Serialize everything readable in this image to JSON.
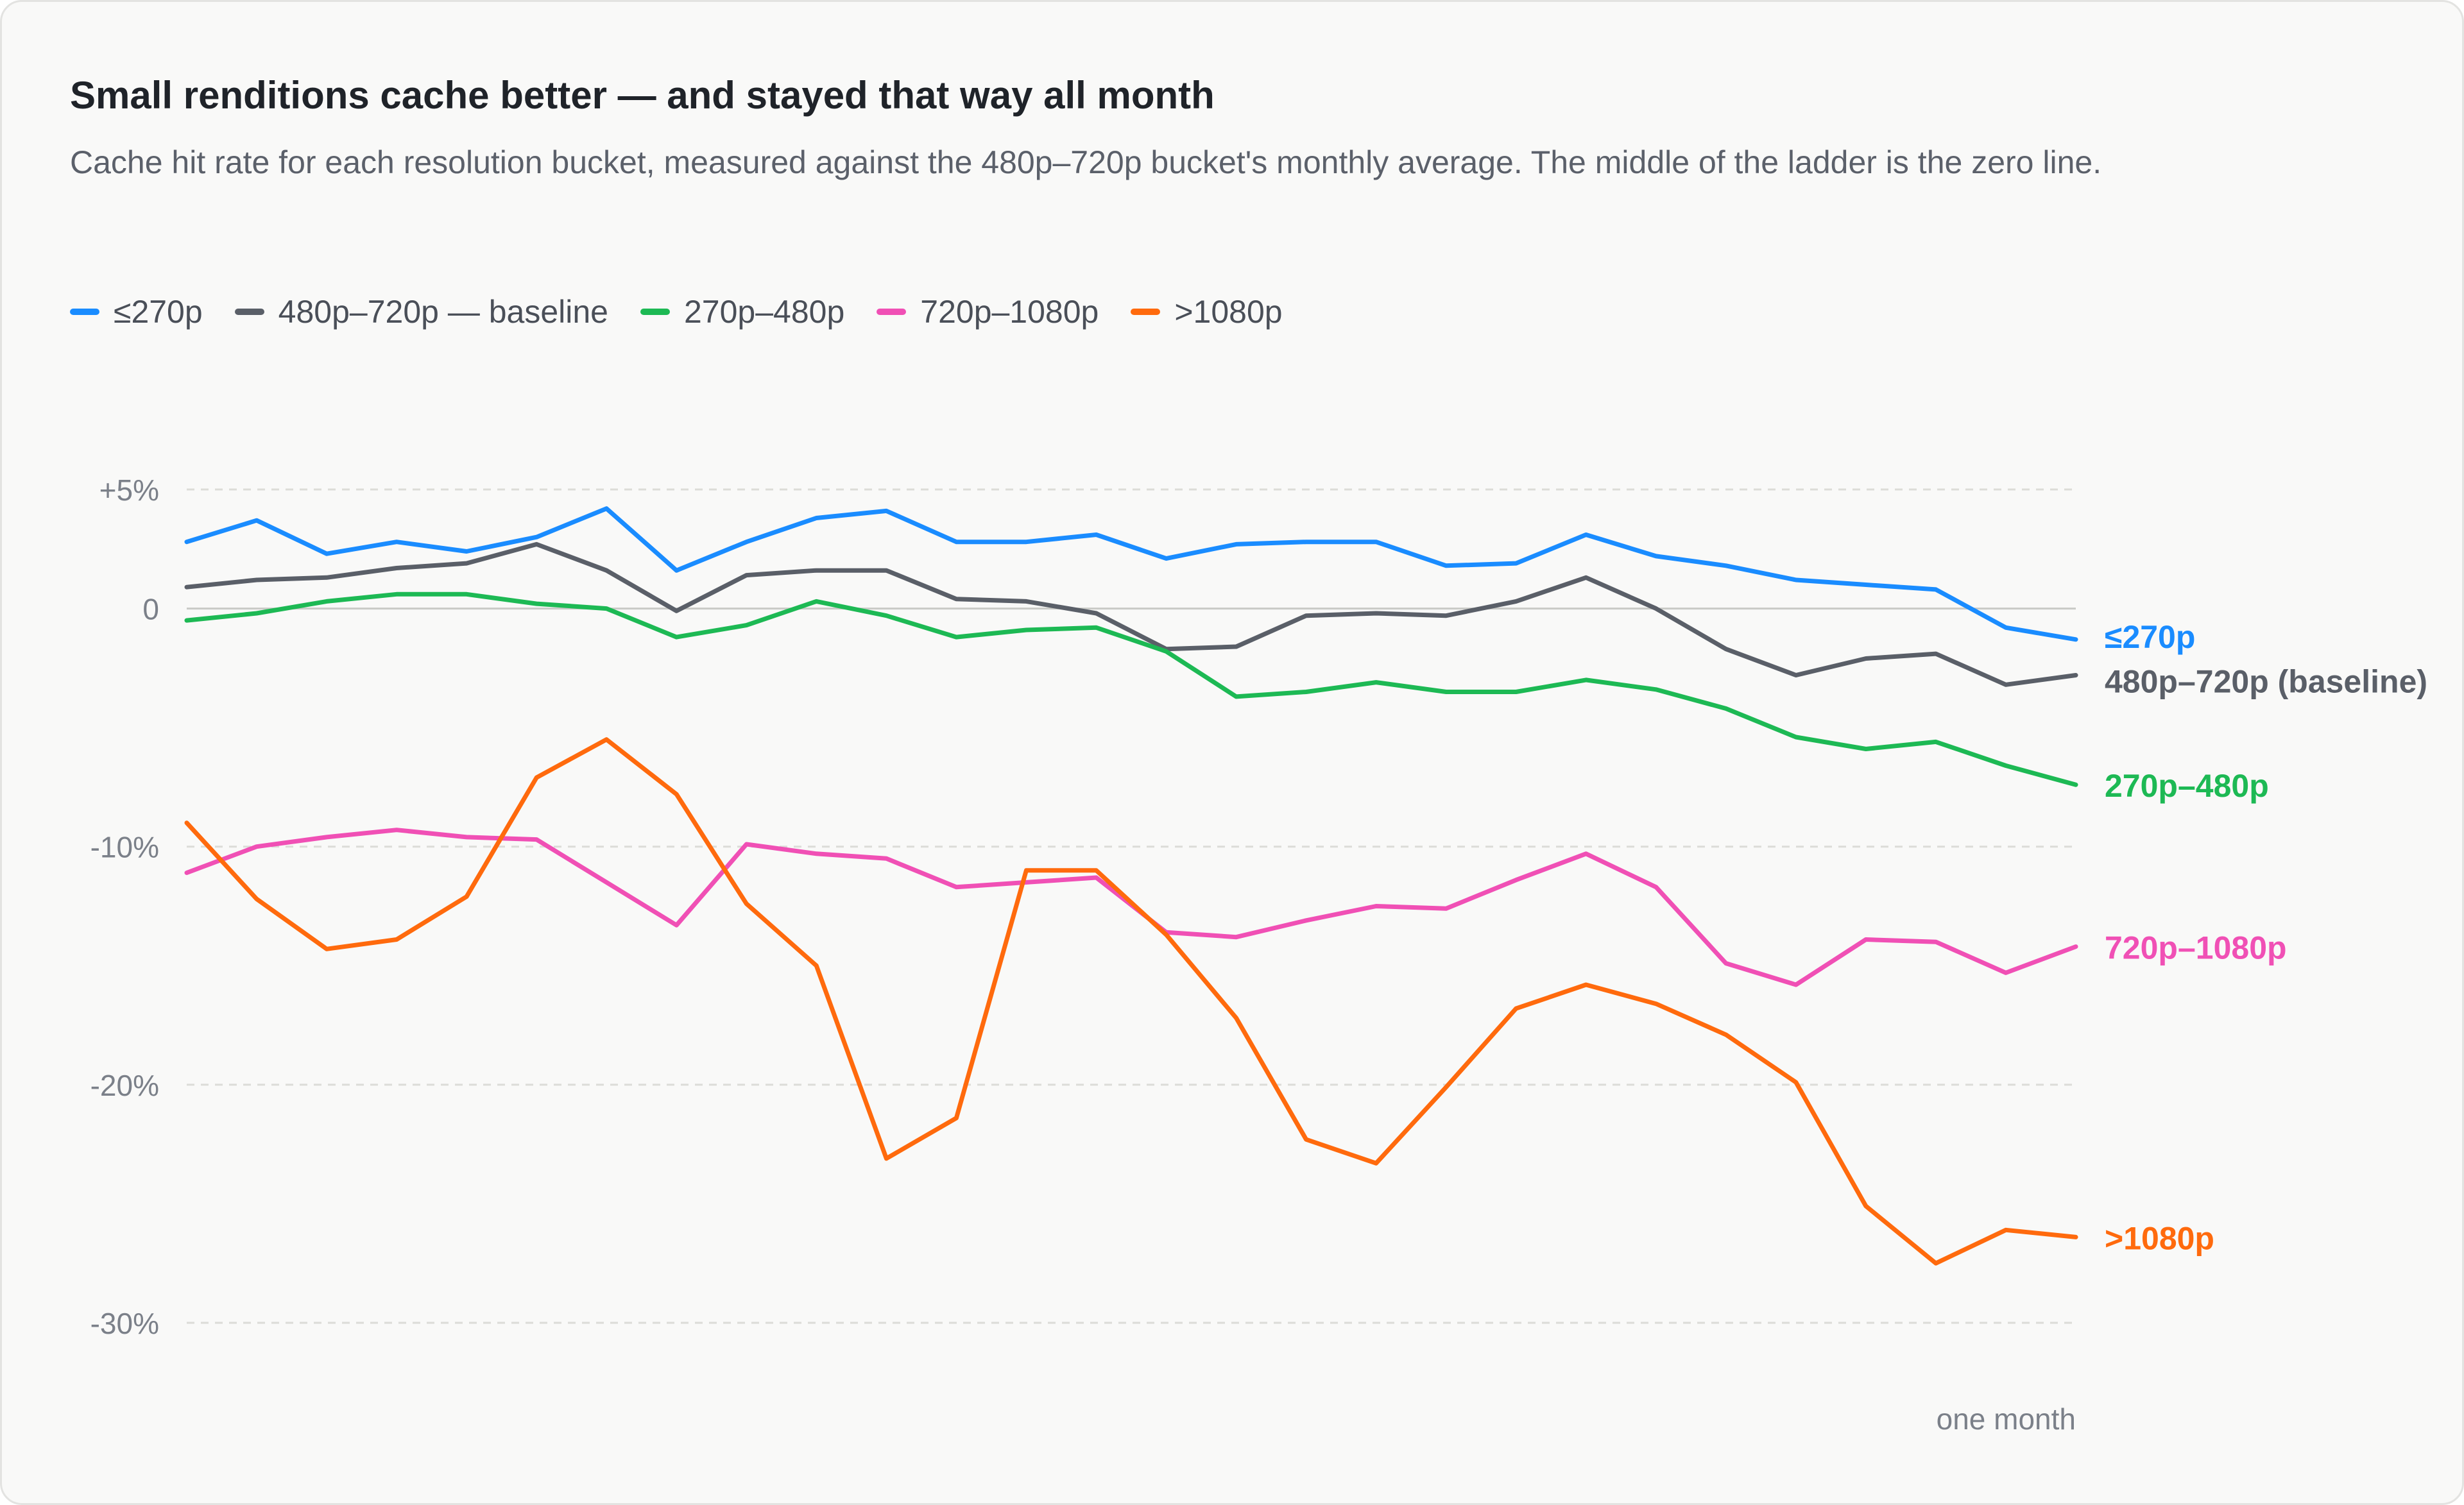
{
  "title": "Small renditions cache better — and stayed that way all month",
  "subtitle": "Cache hit rate for each resolution bucket, measured against the 480p–720p bucket's monthly average. The middle of the ladder is the zero line.",
  "legend": [
    {
      "label": "≤270p",
      "color": "#1a8cff"
    },
    {
      "label": "480p–720p — baseline",
      "color": "#5a5f68"
    },
    {
      "label": "270p–480p",
      "color": "#1db954"
    },
    {
      "label": "720p–1080p",
      "color": "#f050b5"
    },
    {
      "label": ">1080p",
      "color": "#ff6a0d"
    }
  ],
  "chart_data": {
    "type": "line",
    "title": "Small renditions cache better — and stayed that way all month",
    "xlabel": "one month",
    "ylabel": "",
    "x": [
      1,
      2,
      3,
      4,
      5,
      6,
      7,
      8,
      9,
      10,
      11,
      12,
      13,
      14,
      15,
      16,
      17,
      18,
      19,
      20,
      21,
      22,
      23,
      24,
      25,
      26,
      27,
      28
    ],
    "ylim": [
      -30,
      5
    ],
    "yticks": [
      {
        "value": 5,
        "label": "+5%"
      },
      {
        "value": 0,
        "label": "0"
      },
      {
        "value": -10,
        "label": "-10%"
      },
      {
        "value": -20,
        "label": "-20%"
      },
      {
        "value": -30,
        "label": "-30%"
      }
    ],
    "zero_line": 0,
    "grid": true,
    "series": [
      {
        "name": "≤270p",
        "end_label": "≤270p",
        "color": "#1a8cff",
        "values": [
          2.8,
          3.7,
          2.3,
          2.8,
          2.4,
          3.0,
          4.2,
          1.6,
          2.8,
          3.8,
          4.1,
          2.8,
          2.8,
          3.1,
          2.1,
          2.7,
          2.8,
          2.8,
          1.8,
          1.9,
          3.1,
          2.2,
          1.8,
          1.2,
          1.0,
          0.8,
          -0.8,
          -1.3
        ]
      },
      {
        "name": "480p–720p — baseline",
        "end_label": "480p–720p (baseline)",
        "color": "#5a5f68",
        "values": [
          0.9,
          1.2,
          1.3,
          1.7,
          1.9,
          2.7,
          1.6,
          -0.1,
          1.4,
          1.6,
          1.6,
          0.4,
          0.3,
          -0.2,
          -1.7,
          -1.6,
          -0.3,
          -0.2,
          -0.3,
          0.3,
          1.3,
          0.0,
          -1.7,
          -2.8,
          -2.1,
          -1.9,
          -3.2,
          -2.8
        ]
      },
      {
        "name": "270p–480p",
        "end_label": "270p–480p",
        "color": "#1db954",
        "values": [
          -0.5,
          -0.2,
          0.3,
          0.6,
          0.6,
          0.2,
          0.0,
          -1.2,
          -0.7,
          0.3,
          -0.3,
          -1.2,
          -0.9,
          -0.8,
          -1.8,
          -3.7,
          -3.5,
          -3.1,
          -3.5,
          -3.5,
          -3.0,
          -3.4,
          -4.2,
          -5.4,
          -5.9,
          -5.6,
          -6.6,
          -7.4
        ]
      },
      {
        "name": "720p–1080p",
        "end_label": "720p–1080p",
        "color": "#f050b5",
        "values": [
          -11.1,
          -10.0,
          -9.6,
          -9.3,
          -9.6,
          -9.7,
          -11.5,
          -13.3,
          -9.9,
          -10.3,
          -10.5,
          -11.7,
          -11.5,
          -11.3,
          -13.6,
          -13.8,
          -13.1,
          -12.5,
          -12.6,
          -11.4,
          -10.3,
          -11.7,
          -14.9,
          -15.8,
          -13.9,
          -14.0,
          -15.3,
          -14.2
        ]
      },
      {
        "name": ">1080p",
        "end_label": ">1080p",
        "color": "#ff6a0d",
        "values": [
          -9.0,
          -12.2,
          -14.3,
          -13.9,
          -12.1,
          -7.1,
          -5.5,
          -7.8,
          -12.4,
          -15.0,
          -23.1,
          -21.4,
          -11.0,
          -11.0,
          -13.7,
          -17.2,
          -22.3,
          -23.3,
          -20.1,
          -16.8,
          -15.8,
          -16.6,
          -17.9,
          -19.9,
          -25.1,
          -27.5,
          -26.1,
          -26.4
        ]
      }
    ]
  }
}
